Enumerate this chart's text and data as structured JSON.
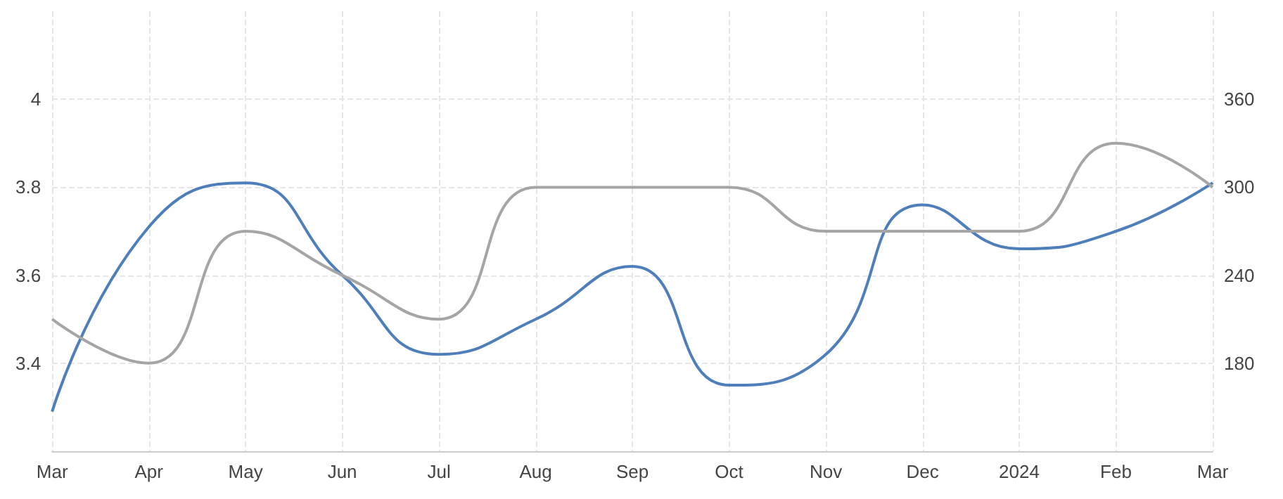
{
  "chart_data": {
    "type": "line",
    "categories": [
      "Mar",
      "Apr",
      "May",
      "Jun",
      "Jul",
      "Aug",
      "Sep",
      "Oct",
      "Nov",
      "Dec",
      "2024",
      "Feb",
      "Mar"
    ],
    "series": [
      {
        "color": "#4f7fbb",
        "values": [
          3.29,
          3.71,
          3.81,
          3.6,
          3.42,
          3.5,
          3.62,
          3.35,
          3.42,
          3.76,
          3.66,
          3.7,
          3.81
        ]
      },
      {
        "color": "#a5a5a5",
        "axis": "y2",
        "values": [
          210,
          180,
          270,
          240,
          210,
          300,
          300,
          300,
          270,
          270,
          270,
          330,
          300
        ]
      }
    ],
    "ylim": [
      3.2,
      4.2
    ],
    "yticks": [
      3.4,
      3.6,
      3.8,
      4
    ],
    "y2lim": [
      120,
      420
    ],
    "y2ticks": [
      180,
      240,
      300,
      360
    ],
    "grid": true,
    "marker": "none",
    "line_style": "solid"
  }
}
